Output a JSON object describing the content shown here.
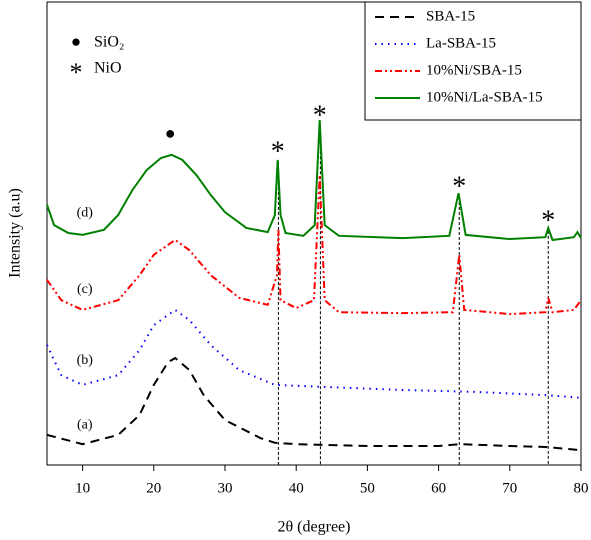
{
  "chart_data": {
    "type": "line",
    "xlabel": "2θ (degree)",
    "ylabel": "Intensity (a.u)",
    "xlim": [
      5,
      80
    ],
    "xticks": [
      10,
      20,
      30,
      40,
      50,
      60,
      70,
      80
    ],
    "ylim": [
      0,
      100
    ],
    "legend": "upper right",
    "series": [
      {
        "name": "SBA-15",
        "color": "#000000",
        "linestyle": "dashed",
        "x": [
          5,
          10,
          15,
          18,
          20,
          22,
          23,
          25,
          27,
          30,
          35,
          37,
          40,
          50,
          60,
          63,
          70,
          75,
          80
        ],
        "values": [
          6.5,
          4.5,
          6.5,
          10.8,
          17.3,
          22.2,
          23.1,
          20.5,
          15.1,
          9.7,
          5.8,
          4.8,
          4.5,
          4.1,
          4.1,
          4.5,
          4.1,
          3.9,
          3.2
        ]
      },
      {
        "name": "La-SBA-15",
        "color": "#0000ff",
        "linestyle": "dotted",
        "x": [
          5,
          7,
          10,
          15,
          18,
          20,
          23,
          25,
          28,
          32,
          37,
          45,
          55,
          65,
          75,
          80
        ],
        "values": [
          25.9,
          19.4,
          17.3,
          19.4,
          24.8,
          30.2,
          33.5,
          31.3,
          25.9,
          20.5,
          17.3,
          16.8,
          16.2,
          15.8,
          15.1,
          14.5
        ]
      },
      {
        "name": "10%Ni/SBA-15",
        "color": "#ff0000",
        "linestyle": "dashdotdot",
        "x": [
          5,
          7,
          10,
          15,
          18,
          20,
          23,
          25,
          28,
          32,
          36,
          37.3,
          37.5,
          37.8,
          40,
          42.5,
          43.3,
          44,
          46,
          55,
          62,
          62.9,
          63.6,
          70,
          75,
          75.4,
          76,
          79,
          80
        ],
        "values": [
          40.0,
          35.6,
          33.5,
          35.6,
          41.0,
          45.4,
          48.6,
          46.4,
          41.0,
          36.1,
          34.6,
          41.0,
          50.8,
          35.6,
          33.9,
          35.6,
          62.6,
          35.6,
          33.0,
          32.8,
          33.0,
          45.4,
          33.5,
          32.6,
          33.0,
          36.1,
          33.0,
          33.5,
          35.6
        ]
      },
      {
        "name": "10%Ni/La-SBA-15",
        "color": "#008000",
        "linestyle": "solid",
        "x": [
          5,
          6,
          8,
          10,
          13,
          15,
          17,
          19,
          21,
          22.5,
          24,
          26,
          28,
          30,
          33,
          36,
          37,
          37.4,
          37.8,
          38.5,
          41,
          42.6,
          43.3,
          44,
          46,
          55,
          61.5,
          62.8,
          63.8,
          70,
          75,
          75.4,
          76,
          79,
          79.5,
          80
        ],
        "values": [
          56.2,
          51.8,
          50.1,
          49.7,
          50.8,
          54.0,
          59.4,
          63.7,
          66.3,
          67.0,
          65.9,
          62.6,
          58.3,
          54.6,
          51.2,
          50.3,
          54.0,
          65.9,
          54.0,
          50.1,
          49.5,
          51.8,
          74.5,
          51.8,
          49.5,
          49.0,
          49.5,
          58.7,
          49.7,
          48.8,
          49.2,
          51.2,
          48.6,
          49.2,
          50.3,
          49.0
        ]
      }
    ],
    "curve_labels": [
      {
        "text": "(a)",
        "x": 10.3,
        "y": 8.6
      },
      {
        "text": "(b)",
        "x": 10.3,
        "y": 22.5
      },
      {
        "text": "(c)",
        "x": 10.3,
        "y": 37.8
      },
      {
        "text": "(d)",
        "x": 10.3,
        "y": 54.4
      }
    ],
    "peak_markers": [
      {
        "symbol": "●",
        "x": 22.3,
        "y": 71.3
      },
      {
        "symbol": "*",
        "x": 37.4,
        "y": 68.5
      },
      {
        "symbol": "*",
        "x": 43.3,
        "y": 76.2
      },
      {
        "symbol": "*",
        "x": 62.9,
        "y": 60.9
      },
      {
        "symbol": "*",
        "x": 75.4,
        "y": 53.6
      }
    ],
    "reference_lines": [
      37.5,
      43.4,
      62.9,
      75.4
    ],
    "phase_legend": [
      {
        "symbol": "●",
        "label": "SiO₂"
      },
      {
        "symbol": "*",
        "label": "NiO"
      }
    ]
  }
}
